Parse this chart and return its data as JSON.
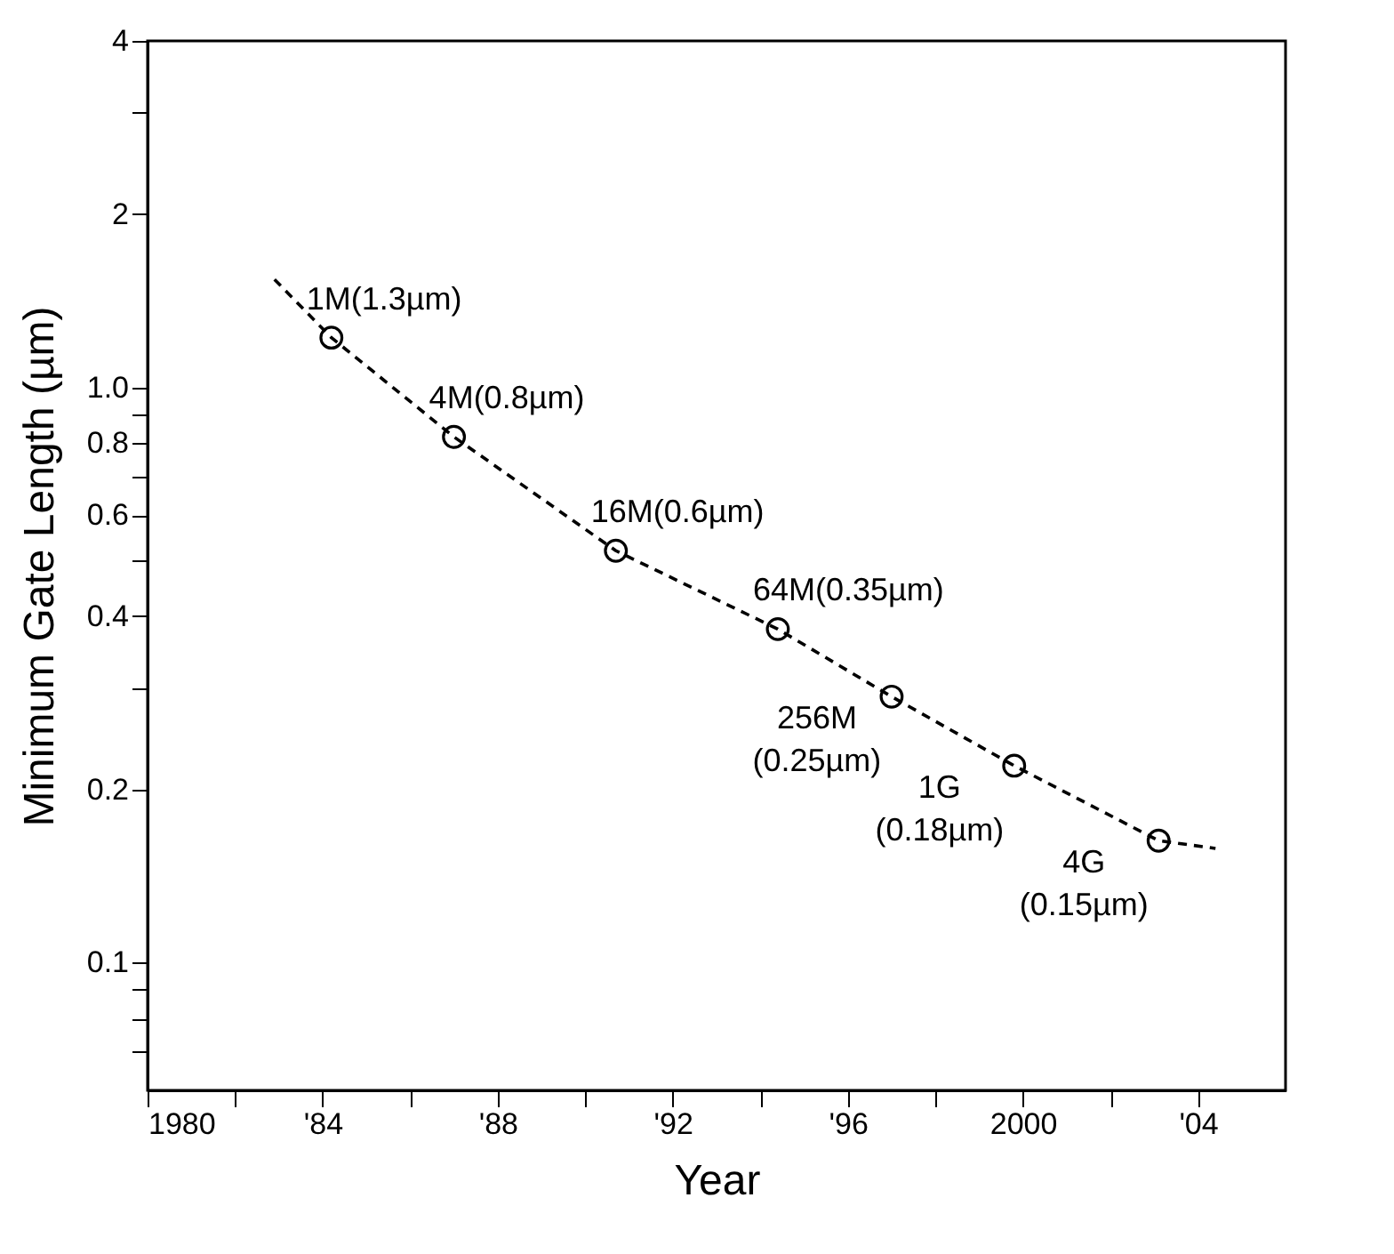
{
  "chart_data": {
    "type": "scatter",
    "xlabel": "Year",
    "ylabel": "Minimum Gate Length (µm)",
    "log": "y",
    "grid": false,
    "xlim": [
      1980,
      2006
    ],
    "ylim": [
      0.06,
      4
    ],
    "xticks": [
      1980,
      {
        "value": 1982,
        "label": null
      },
      {
        "value": 1984,
        "label": "'84"
      },
      {
        "value": 1986,
        "label": null
      },
      {
        "value": 1988,
        "label": "'88"
      },
      {
        "value": 1990,
        "label": null
      },
      {
        "value": 1992,
        "label": "'92"
      },
      {
        "value": 1994,
        "label": null
      },
      {
        "value": 1996,
        "label": "'96"
      },
      {
        "value": 1998,
        "label": null
      },
      2000,
      {
        "value": 2002,
        "label": null
      },
      {
        "value": 2004,
        "label": "'04"
      }
    ],
    "yticks": [
      {
        "value": 0.07,
        "label": null
      },
      {
        "value": 0.08,
        "label": null
      },
      {
        "value": 0.09,
        "label": null
      },
      0.1,
      0.2,
      {
        "value": 0.3,
        "label": null
      },
      0.4,
      {
        "value": 0.5,
        "label": null
      },
      0.6,
      {
        "value": 0.7,
        "label": null
      },
      0.8,
      {
        "value": 0.9,
        "label": null
      },
      {
        "value": 1,
        "label": "1.0"
      },
      2,
      {
        "value": 3,
        "label": null
      },
      4
    ],
    "series": [
      {
        "type": "scatter",
        "marker": "circle",
        "color": "#000000",
        "x": [
          1984.2,
          1987.0,
          1990.7,
          1994.4,
          1997.0,
          1999.8,
          2003.1
        ],
        "values": [
          1.22,
          0.82,
          0.52,
          0.38,
          0.29,
          0.22,
          0.163
        ]
      },
      {
        "type": "line",
        "marker": "none",
        "line_style": "dashed",
        "color": "#000000",
        "x": [
          1982.9,
          1984.2,
          1987.0,
          1990.7,
          1994.4,
          1997.0,
          1999.8,
          2003.1,
          2004.4
        ],
        "values": [
          1.54,
          1.22,
          0.82,
          0.52,
          0.38,
          0.29,
          0.22,
          0.163,
          0.158
        ]
      }
    ],
    "annotations": [
      {
        "text": "1M(1.3µm)",
        "x": 1984.2,
        "y": 1.22
      },
      {
        "text": "4M(0.8µm)",
        "x": 1987.0,
        "y": 0.82
      },
      {
        "text": "16M(0.6µm)",
        "x": 1990.7,
        "y": 0.52
      },
      {
        "text": "64M(0.35µm)",
        "x": 1994.4,
        "y": 0.38
      },
      {
        "text": "256M\n(0.25µm)",
        "x": 1997.0,
        "y": 0.29
      },
      {
        "text": "1G\n(0.18µm)",
        "x": 1999.8,
        "y": 0.22
      },
      {
        "text": "4G\n(0.15µm)",
        "x": 2003.1,
        "y": 0.163
      }
    ]
  }
}
